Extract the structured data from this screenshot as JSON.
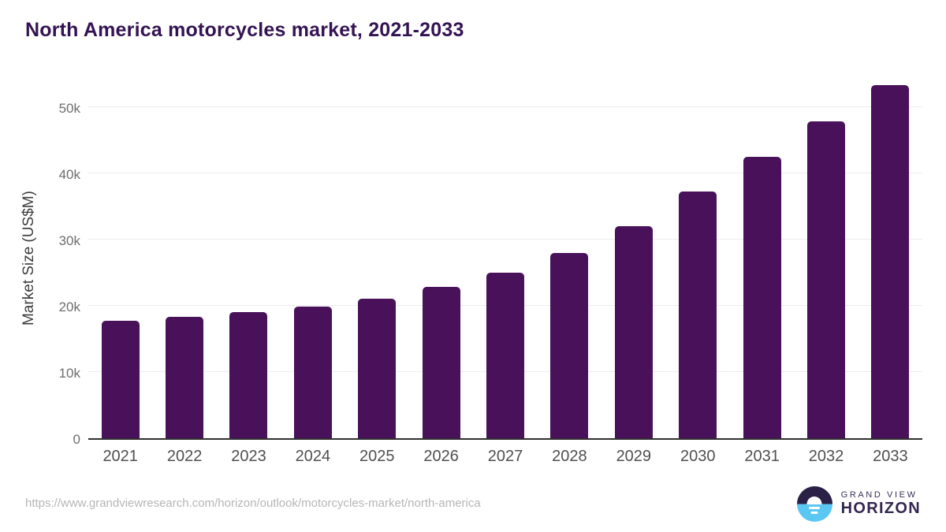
{
  "title": "North America motorcycles market, 2021-2033",
  "source_url": "https://www.grandviewresearch.com/horizon/outlook/motorcycles-market/north-america",
  "logo": {
    "brand_top": "GRAND VIEW",
    "brand_bottom": "HORIZON"
  },
  "colors": {
    "bar": "#49115A",
    "title_text": "#341353",
    "gridline": "#ececec",
    "axis_line": "#303030",
    "y_tick_text": "#6e6e6e",
    "x_tick_text": "#4f4f4f",
    "url_text": "#b6b6b6",
    "logo_dark": "#2B2045",
    "logo_blue": "#5BC7F3"
  },
  "chart_data": {
    "type": "bar",
    "title": "North America motorcycles market, 2021-2033",
    "xlabel": "",
    "ylabel": "Market Size (US$M)",
    "categories": [
      "2021",
      "2022",
      "2023",
      "2024",
      "2025",
      "2026",
      "2027",
      "2028",
      "2029",
      "2030",
      "2031",
      "2032",
      "2033"
    ],
    "values": [
      17700,
      18300,
      19000,
      19900,
      21100,
      22900,
      25000,
      28000,
      32000,
      37300,
      42500,
      47900,
      53300
    ],
    "ylim": [
      0,
      54000
    ],
    "yticks": [
      {
        "label": "0",
        "value": 0
      },
      {
        "label": "10k",
        "value": 10000
      },
      {
        "label": "20k",
        "value": 20000
      },
      {
        "label": "30k",
        "value": 30000
      },
      {
        "label": "40k",
        "value": 40000
      },
      {
        "label": "50k",
        "value": 50000
      }
    ],
    "grid": "horizontal",
    "legend": false,
    "bar_color": "#49115A"
  }
}
